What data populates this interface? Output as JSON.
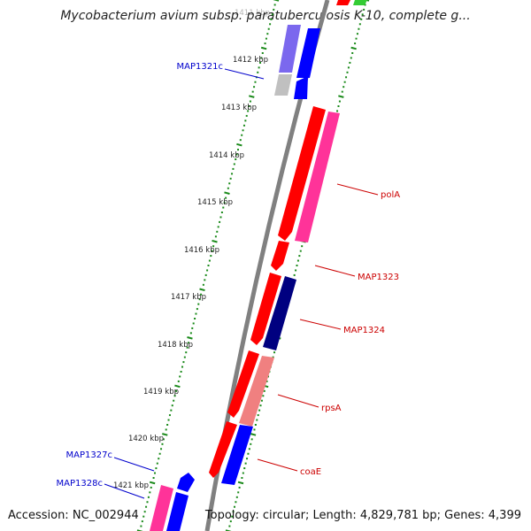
{
  "title": "Mycobacterium avium subsp. paratuberculosis K-10, complete g...",
  "accession": "Accession: NC_002944",
  "topology": "Topology: circular; Length: 4,829,781 bp; Genes: 4,399",
  "colors": {
    "backbone": "#808080",
    "tick": "#1a8a1a",
    "forward_label": "#cc0000",
    "reverse_label": "#0000cc",
    "red": "#ff0000",
    "pink": "#ff3399",
    "blue": "#0000ff",
    "navy": "#000080",
    "salmon": "#f08080",
    "lavender": "#7b68ee",
    "grey": "#c0c0c0",
    "green": "#33cc33"
  },
  "ticks": [
    {
      "label": "1411 kbp",
      "faded": true
    },
    {
      "label": "1412 kbp"
    },
    {
      "label": "1413 kbp"
    },
    {
      "label": "1414 kbp"
    },
    {
      "label": "1415 kbp"
    },
    {
      "label": "1416 kbp"
    },
    {
      "label": "1417 kbp"
    },
    {
      "label": "1418 kbp"
    },
    {
      "label": "1419 kbp"
    },
    {
      "label": "1420 kbp"
    },
    {
      "label": "1421 kbp"
    }
  ],
  "gene_labels": [
    {
      "id": "polA",
      "text": "polA",
      "strand": "forward"
    },
    {
      "id": "MAP1323",
      "text": "MAP1323",
      "strand": "forward"
    },
    {
      "id": "MAP1324",
      "text": "MAP1324",
      "strand": "forward"
    },
    {
      "id": "rpsA",
      "text": "rpsA",
      "strand": "forward"
    },
    {
      "id": "coaE",
      "text": "coaE",
      "strand": "forward"
    },
    {
      "id": "MAP1321c",
      "text": "MAP1321c",
      "strand": "reverse"
    },
    {
      "id": "MAP1327c",
      "text": "MAP1327c",
      "strand": "reverse"
    },
    {
      "id": "MAP1328c",
      "text": "MAP1328c",
      "strand": "reverse"
    }
  ]
}
